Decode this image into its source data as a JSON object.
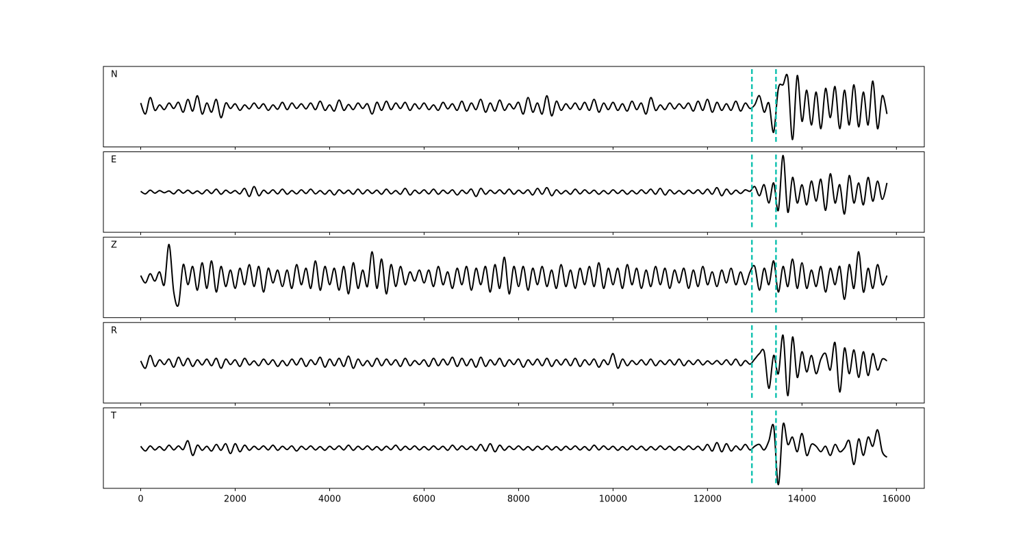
{
  "chart_data": {
    "type": "line",
    "subplots": true,
    "x": [
      0,
      100,
      200,
      300,
      400,
      500,
      600,
      700,
      800,
      900,
      1000,
      1100,
      1200,
      1300,
      1400,
      1500,
      1600,
      1700,
      1800,
      1900,
      2000,
      2100,
      2200,
      2300,
      2400,
      2500,
      2600,
      2700,
      2800,
      2900,
      3000,
      3100,
      3200,
      3300,
      3400,
      3500,
      3600,
      3700,
      3800,
      3900,
      4000,
      4100,
      4200,
      4300,
      4400,
      4500,
      4600,
      4700,
      4800,
      4900,
      5000,
      5100,
      5200,
      5300,
      5400,
      5500,
      5600,
      5700,
      5800,
      5900,
      6000,
      6100,
      6200,
      6300,
      6400,
      6500,
      6600,
      6700,
      6800,
      6900,
      7000,
      7100,
      7200,
      7300,
      7400,
      7500,
      7600,
      7700,
      7800,
      7900,
      8000,
      8100,
      8200,
      8300,
      8400,
      8500,
      8600,
      8700,
      8800,
      8900,
      9000,
      9100,
      9200,
      9300,
      9400,
      9500,
      9600,
      9700,
      9800,
      9900,
      10000,
      10100,
      10200,
      10300,
      10400,
      10500,
      10600,
      10700,
      10800,
      10900,
      11000,
      11100,
      11200,
      11300,
      11400,
      11500,
      11600,
      11700,
      11800,
      11900,
      12000,
      12100,
      12200,
      12300,
      12400,
      12500,
      12600,
      12700,
      12800,
      12900,
      13000,
      13100,
      13200,
      13300,
      13400,
      13500,
      13600,
      13700,
      13800,
      13900,
      14000,
      14100,
      14200,
      14300,
      14400,
      14500,
      14600,
      14700,
      14800,
      14900,
      15000,
      15100,
      15200,
      15300,
      15400,
      15500,
      15600,
      15700,
      15800
    ],
    "series": [
      {
        "name": "N",
        "color": "#000000",
        "values": [
          0.1,
          -0.2,
          0.25,
          -0.1,
          0.05,
          -0.08,
          0.1,
          -0.05,
          0.12,
          -0.15,
          0.2,
          -0.12,
          0.3,
          -0.2,
          0.1,
          -0.15,
          0.2,
          -0.3,
          0.1,
          -0.05,
          0.08,
          -0.1,
          0.05,
          -0.06,
          0.1,
          -0.05,
          0.08,
          -0.1,
          0.05,
          -0.07,
          0.12,
          -0.08,
          0.1,
          -0.05,
          0.08,
          -0.06,
          0.1,
          -0.08,
          0.15,
          -0.1,
          0.05,
          -0.12,
          0.18,
          -0.1,
          0.06,
          -0.08,
          0.1,
          -0.05,
          0.08,
          -0.2,
          0.12,
          -0.1,
          0.15,
          -0.08,
          0.1,
          -0.05,
          0.12,
          -0.1,
          0.08,
          -0.06,
          0.1,
          -0.08,
          0.05,
          -0.1,
          0.12,
          -0.06,
          0.08,
          -0.1,
          0.15,
          -0.12,
          0.1,
          -0.08,
          0.2,
          -0.15,
          0.1,
          -0.12,
          0.18,
          -0.1,
          0.08,
          -0.06,
          0.12,
          -0.2,
          0.25,
          -0.15,
          0.1,
          -0.2,
          0.3,
          -0.25,
          0.15,
          -0.1,
          0.08,
          -0.06,
          0.1,
          -0.08,
          0.12,
          -0.1,
          0.2,
          -0.15,
          0.1,
          -0.08,
          0.12,
          -0.1,
          0.08,
          -0.12,
          0.15,
          -0.08,
          0.1,
          -0.2,
          0.25,
          -0.1,
          0.05,
          -0.08,
          0.1,
          -0.06,
          0.08,
          -0.05,
          0.1,
          -0.12,
          0.15,
          -0.1,
          0.2,
          -0.15,
          0.12,
          -0.1,
          0.08,
          -0.1,
          0.15,
          -0.12,
          0.1,
          -0.05,
          0.05,
          0.3,
          -0.15,
          0.1,
          -0.7,
          0.5,
          0.6,
          0.8,
          -0.9,
          0.85,
          -0.4,
          0.45,
          -0.5,
          0.4,
          -0.6,
          0.5,
          -0.3,
          0.55,
          -0.6,
          0.45,
          -0.5,
          0.6,
          -0.55,
          0.4,
          -0.5,
          0.7,
          -0.6,
          0.3,
          -0.2
        ]
      },
      {
        "name": "E",
        "color": "#000000",
        "values": [
          0.02,
          -0.05,
          0.05,
          -0.03,
          0.04,
          -0.02,
          0.03,
          -0.05,
          0.06,
          -0.03,
          0.05,
          -0.04,
          0.03,
          -0.05,
          0.06,
          -0.04,
          0.08,
          -0.06,
          0.05,
          -0.03,
          0.04,
          -0.05,
          0.1,
          -0.12,
          0.15,
          -0.1,
          0.05,
          -0.04,
          0.06,
          -0.05,
          0.08,
          -0.06,
          0.04,
          -0.05,
          0.06,
          -0.04,
          0.08,
          -0.05,
          0.04,
          -0.06,
          0.05,
          -0.08,
          0.06,
          -0.04,
          0.05,
          -0.06,
          0.08,
          -0.05,
          0.06,
          -0.04,
          0.05,
          -0.06,
          0.08,
          -0.05,
          0.04,
          -0.06,
          0.1,
          -0.08,
          0.05,
          -0.04,
          0.06,
          -0.05,
          0.08,
          -0.06,
          0.05,
          -0.04,
          0.06,
          -0.08,
          0.05,
          -0.04,
          0.08,
          -0.12,
          0.1,
          -0.06,
          0.05,
          -0.04,
          0.06,
          -0.05,
          0.08,
          -0.06,
          0.05,
          -0.04,
          0.06,
          -0.08,
          0.1,
          -0.06,
          0.12,
          -0.1,
          0.06,
          -0.05,
          0.04,
          -0.06,
          0.08,
          -0.05,
          0.06,
          -0.04,
          0.05,
          -0.06,
          0.04,
          -0.05,
          0.06,
          -0.04,
          0.05,
          -0.06,
          0.04,
          -0.05,
          0.06,
          -0.04,
          0.08,
          -0.06,
          0.1,
          -0.08,
          0.06,
          -0.05,
          0.04,
          -0.06,
          0.05,
          -0.04,
          0.06,
          -0.05,
          0.08,
          -0.06,
          0.12,
          -0.1,
          0.08,
          -0.06,
          0.05,
          -0.04,
          0.06,
          0.02,
          0.15,
          -0.1,
          0.2,
          -0.3,
          0.25,
          -0.5,
          1.0,
          -0.55,
          0.4,
          -0.3,
          0.2,
          -0.35,
          0.3,
          -0.25,
          0.35,
          -0.5,
          0.5,
          -0.3,
          0.2,
          -0.6,
          0.45,
          -0.3,
          0.25,
          -0.35,
          0.4,
          -0.25,
          0.3,
          -0.2,
          0.25
        ]
      },
      {
        "name": "Z",
        "color": "#000000",
        "values": [
          0.05,
          -0.15,
          0.1,
          -0.1,
          0.15,
          -0.2,
          0.9,
          -0.4,
          -0.75,
          0.35,
          -0.2,
          0.3,
          -0.35,
          0.4,
          -0.3,
          0.45,
          -0.4,
          0.3,
          -0.25,
          0.2,
          -0.3,
          0.25,
          -0.2,
          0.35,
          -0.25,
          0.3,
          -0.4,
          0.25,
          -0.15,
          0.2,
          -0.25,
          0.2,
          -0.3,
          0.35,
          -0.2,
          0.25,
          -0.3,
          0.45,
          -0.35,
          0.3,
          -0.2,
          0.25,
          -0.35,
          0.3,
          -0.45,
          0.4,
          -0.3,
          0.2,
          -0.25,
          0.7,
          -0.3,
          0.5,
          -0.45,
          0.35,
          -0.25,
          0.3,
          -0.2,
          0.15,
          -0.1,
          0.2,
          -0.15,
          0.2,
          -0.25,
          0.3,
          -0.2,
          0.15,
          -0.3,
          0.25,
          -0.2,
          0.3,
          -0.35,
          0.25,
          -0.2,
          0.3,
          -0.4,
          0.35,
          -0.3,
          0.55,
          -0.45,
          0.3,
          -0.25,
          0.3,
          -0.35,
          0.25,
          -0.2,
          0.3,
          -0.25,
          0.2,
          -0.3,
          0.35,
          -0.25,
          0.2,
          -0.3,
          0.25,
          -0.2,
          0.3,
          -0.25,
          0.4,
          -0.3,
          0.25,
          -0.2,
          0.25,
          -0.3,
          0.35,
          -0.2,
          0.25,
          -0.3,
          0.2,
          -0.25,
          0.3,
          -0.2,
          0.25,
          -0.3,
          0.2,
          -0.15,
          0.25,
          -0.3,
          0.2,
          -0.25,
          0.3,
          -0.2,
          0.15,
          -0.25,
          0.2,
          -0.15,
          0.25,
          -0.2,
          0.15,
          -0.2,
          0.15,
          0.3,
          -0.35,
          0.25,
          -0.2,
          0.45,
          -0.4,
          0.3,
          -0.25,
          0.5,
          -0.3,
          0.4,
          -0.3,
          0.2,
          -0.25,
          0.3,
          -0.4,
          0.25,
          -0.2,
          0.3,
          -0.6,
          0.35,
          -0.3,
          0.7,
          -0.4,
          0.25,
          -0.3,
          0.35,
          -0.2,
          0.05
        ]
      },
      {
        "name": "R",
        "color": "#000000",
        "values": [
          0.05,
          -0.15,
          0.2,
          -0.1,
          0.08,
          -0.05,
          0.1,
          -0.12,
          0.15,
          -0.08,
          0.12,
          -0.1,
          0.08,
          -0.06,
          0.1,
          -0.08,
          0.12,
          -0.15,
          0.1,
          -0.05,
          0.08,
          -0.1,
          0.12,
          -0.06,
          0.05,
          -0.08,
          0.1,
          -0.05,
          0.08,
          -0.1,
          0.06,
          -0.08,
          0.1,
          -0.06,
          0.12,
          -0.1,
          0.08,
          -0.05,
          0.15,
          -0.12,
          0.1,
          -0.08,
          0.12,
          -0.1,
          0.18,
          -0.15,
          0.1,
          -0.08,
          0.06,
          -0.1,
          0.12,
          -0.08,
          0.1,
          -0.06,
          0.08,
          -0.1,
          0.12,
          -0.08,
          0.06,
          -0.05,
          0.08,
          -0.1,
          0.12,
          -0.08,
          0.1,
          -0.06,
          0.15,
          -0.1,
          0.12,
          -0.08,
          0.1,
          -0.12,
          0.15,
          -0.1,
          0.08,
          -0.06,
          0.12,
          -0.1,
          0.08,
          -0.05,
          0.1,
          -0.12,
          0.08,
          -0.06,
          0.1,
          -0.08,
          0.12,
          -0.1,
          0.08,
          -0.06,
          0.1,
          -0.08,
          0.12,
          -0.1,
          0.08,
          -0.06,
          0.1,
          -0.12,
          0.08,
          -0.05,
          0.25,
          -0.15,
          0.1,
          -0.08,
          0.06,
          -0.05,
          0.08,
          -0.06,
          0.1,
          -0.08,
          0.06,
          -0.05,
          0.08,
          -0.06,
          0.1,
          -0.08,
          0.06,
          -0.05,
          0.08,
          -0.06,
          0.05,
          -0.04,
          0.06,
          -0.05,
          0.08,
          -0.06,
          0.1,
          -0.08,
          0.06,
          -0.04,
          0.1,
          0.25,
          0.3,
          -0.7,
          0.2,
          -0.3,
          0.75,
          -0.9,
          0.7,
          -0.4,
          0.3,
          -0.25,
          0.2,
          -0.3,
          0.1,
          0.25,
          -0.2,
          0.55,
          -0.8,
          0.4,
          -0.3,
          0.35,
          -0.4,
          0.3,
          -0.35,
          0.25,
          -0.2,
          0.1,
          0.05
        ]
      },
      {
        "name": "T",
        "color": "#000000",
        "values": [
          0.05,
          -0.08,
          0.06,
          -0.05,
          0.04,
          -0.06,
          0.08,
          -0.05,
          0.06,
          -0.04,
          0.2,
          -0.2,
          0.08,
          -0.06,
          0.05,
          -0.08,
          0.1,
          -0.06,
          0.12,
          -0.15,
          0.12,
          -0.1,
          0.08,
          -0.06,
          0.05,
          -0.04,
          0.06,
          -0.05,
          0.08,
          -0.06,
          0.05,
          -0.04,
          0.06,
          -0.08,
          0.05,
          -0.04,
          0.06,
          -0.05,
          0.04,
          -0.06,
          0.05,
          -0.04,
          0.06,
          -0.05,
          0.08,
          -0.06,
          0.05,
          -0.04,
          0.06,
          -0.05,
          0.04,
          -0.06,
          0.05,
          -0.04,
          0.08,
          -0.06,
          0.05,
          -0.04,
          0.06,
          -0.05,
          0.04,
          -0.05,
          0.06,
          -0.04,
          0.05,
          -0.06,
          0.08,
          -0.05,
          0.06,
          -0.04,
          0.05,
          -0.06,
          0.1,
          -0.08,
          0.12,
          -0.1,
          0.08,
          -0.06,
          0.05,
          -0.04,
          0.06,
          -0.05,
          0.04,
          -0.06,
          0.05,
          -0.04,
          0.06,
          -0.05,
          0.04,
          -0.06,
          0.05,
          -0.04,
          0.06,
          -0.05,
          0.04,
          -0.06,
          0.08,
          -0.05,
          0.06,
          -0.04,
          0.05,
          -0.06,
          0.04,
          -0.05,
          0.06,
          -0.04,
          0.05,
          -0.06,
          0.04,
          -0.05,
          0.06,
          -0.04,
          0.05,
          -0.06,
          0.04,
          -0.05,
          0.06,
          -0.04,
          0.05,
          -0.06,
          0.1,
          -0.08,
          0.15,
          -0.1,
          0.12,
          -0.08,
          0.06,
          -0.05,
          0.1,
          -0.05,
          0.05,
          0.1,
          -0.05,
          0.2,
          0.6,
          -1.0,
          0.65,
          0.1,
          0.3,
          -0.1,
          0.4,
          -0.2,
          0.1,
          0.05,
          -0.1,
          0.05,
          -0.2,
          0.1,
          -0.1,
          0.0,
          0.2,
          -0.45,
          0.25,
          -0.2,
          0.3,
          0.05,
          0.5,
          -0.1,
          -0.25
        ]
      }
    ],
    "xlim": [
      -790,
      16590
    ],
    "xticks": [
      0,
      2000,
      4000,
      6000,
      8000,
      10000,
      12000,
      14000,
      16000
    ],
    "ylim": [
      -1.1,
      1.1
    ],
    "vlines": [
      12940,
      13450
    ],
    "vline_color": "#12c2b0",
    "vline_style": "dashed"
  }
}
